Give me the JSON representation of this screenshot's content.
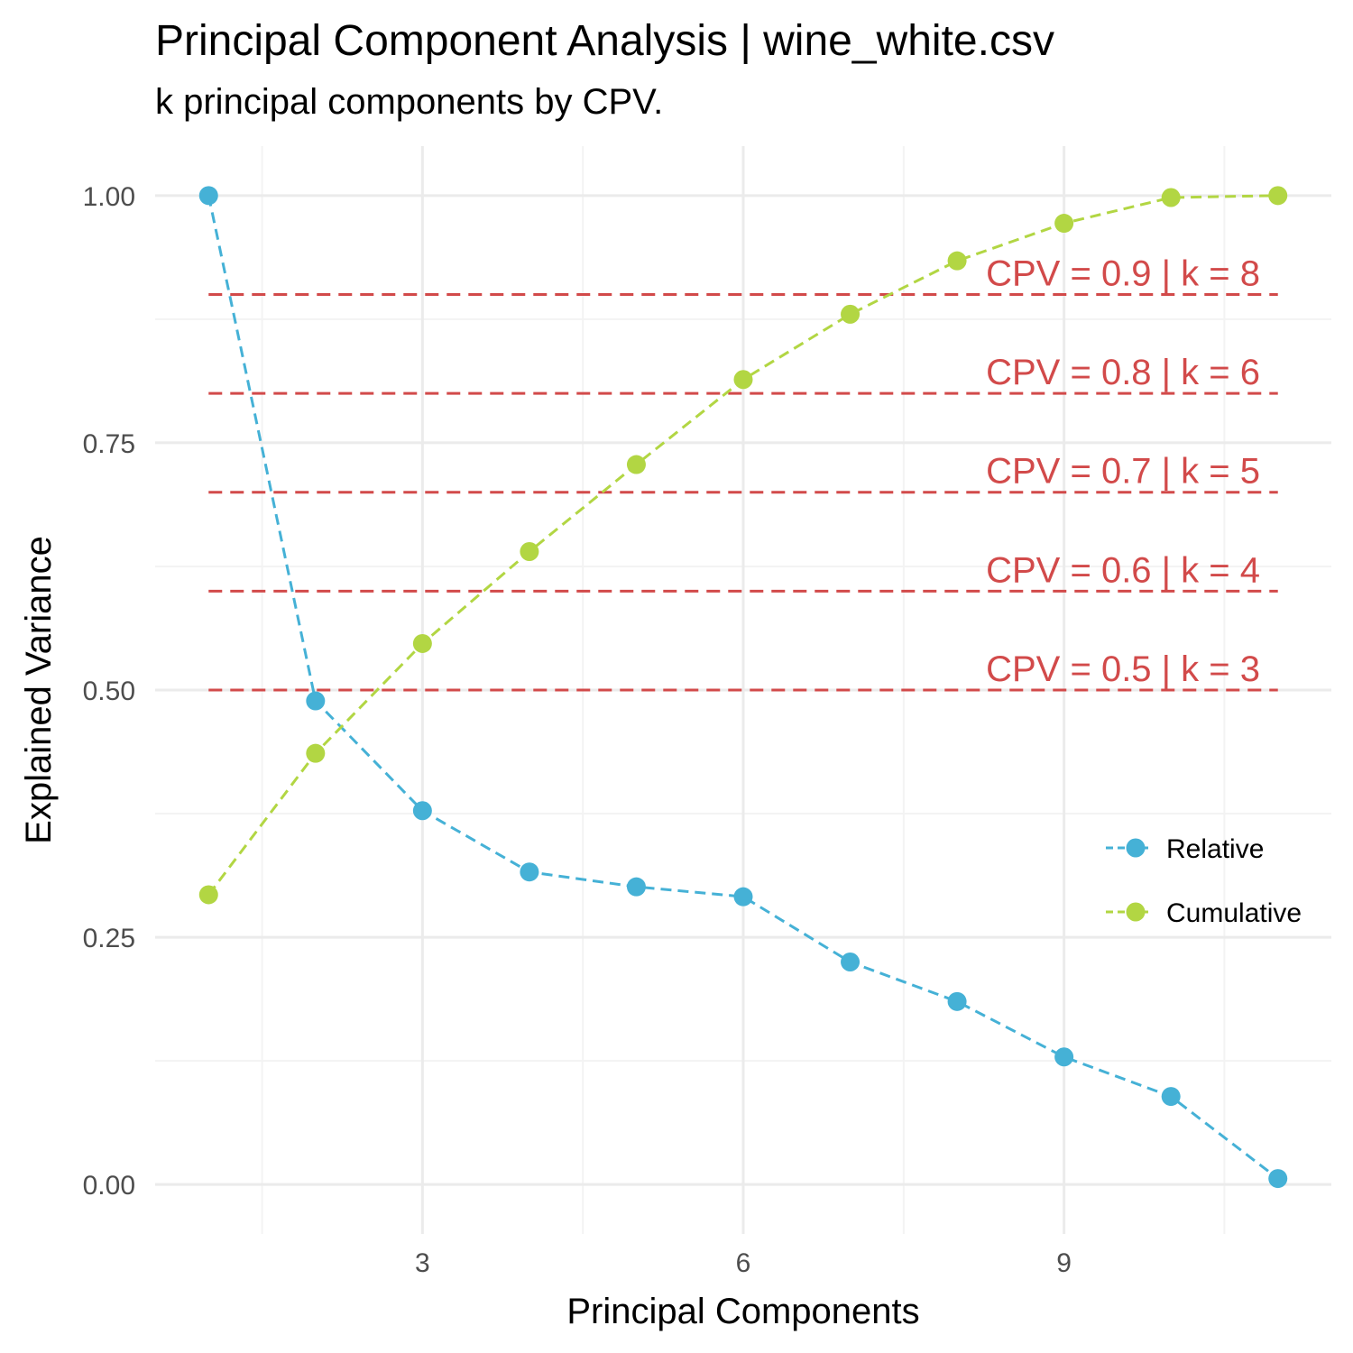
{
  "colors": {
    "relative": "#45B1D6",
    "cumulative": "#B2D643",
    "threshold": "#D24A4A",
    "grid_major": "#EBEBEB",
    "grid_minor": "#F3F3F3"
  },
  "chart_data": {
    "type": "line",
    "title": "Principal Component Analysis | wine_white.csv",
    "subtitle": "k principal components by CPV.",
    "xlabel": "Principal Components",
    "ylabel": "Explained Variance",
    "xlim": [
      0.5,
      11.5
    ],
    "ylim": [
      -0.05,
      1.05
    ],
    "x_ticks": [
      3,
      6,
      9
    ],
    "y_ticks": [
      0.0,
      0.25,
      0.5,
      0.75,
      1.0
    ],
    "y_tick_labels": [
      "0.00",
      "0.25",
      "0.50",
      "0.75",
      "1.00"
    ],
    "grid": true,
    "legend_position": "right",
    "x": [
      1,
      2,
      3,
      4,
      5,
      6,
      7,
      8,
      9,
      10,
      11
    ],
    "series": [
      {
        "name": "Relative",
        "color": "#45B1D6",
        "values": [
          1.0,
          0.489,
          0.378,
          0.316,
          0.301,
          0.291,
          0.225,
          0.185,
          0.129,
          0.089,
          0.006
        ]
      },
      {
        "name": "Cumulative",
        "color": "#B2D643",
        "values": [
          0.293,
          0.436,
          0.547,
          0.64,
          0.728,
          0.814,
          0.88,
          0.934,
          0.972,
          0.998,
          1.0
        ]
      }
    ],
    "thresholds": [
      {
        "y": 0.9,
        "label": "CPV = 0.9 | k = 8"
      },
      {
        "y": 0.8,
        "label": "CPV = 0.8 | k = 6"
      },
      {
        "y": 0.7,
        "label": "CPV = 0.7 | k = 5"
      },
      {
        "y": 0.6,
        "label": "CPV = 0.6 | k = 4"
      },
      {
        "y": 0.5,
        "label": "CPV = 0.5 | k = 3"
      }
    ]
  }
}
